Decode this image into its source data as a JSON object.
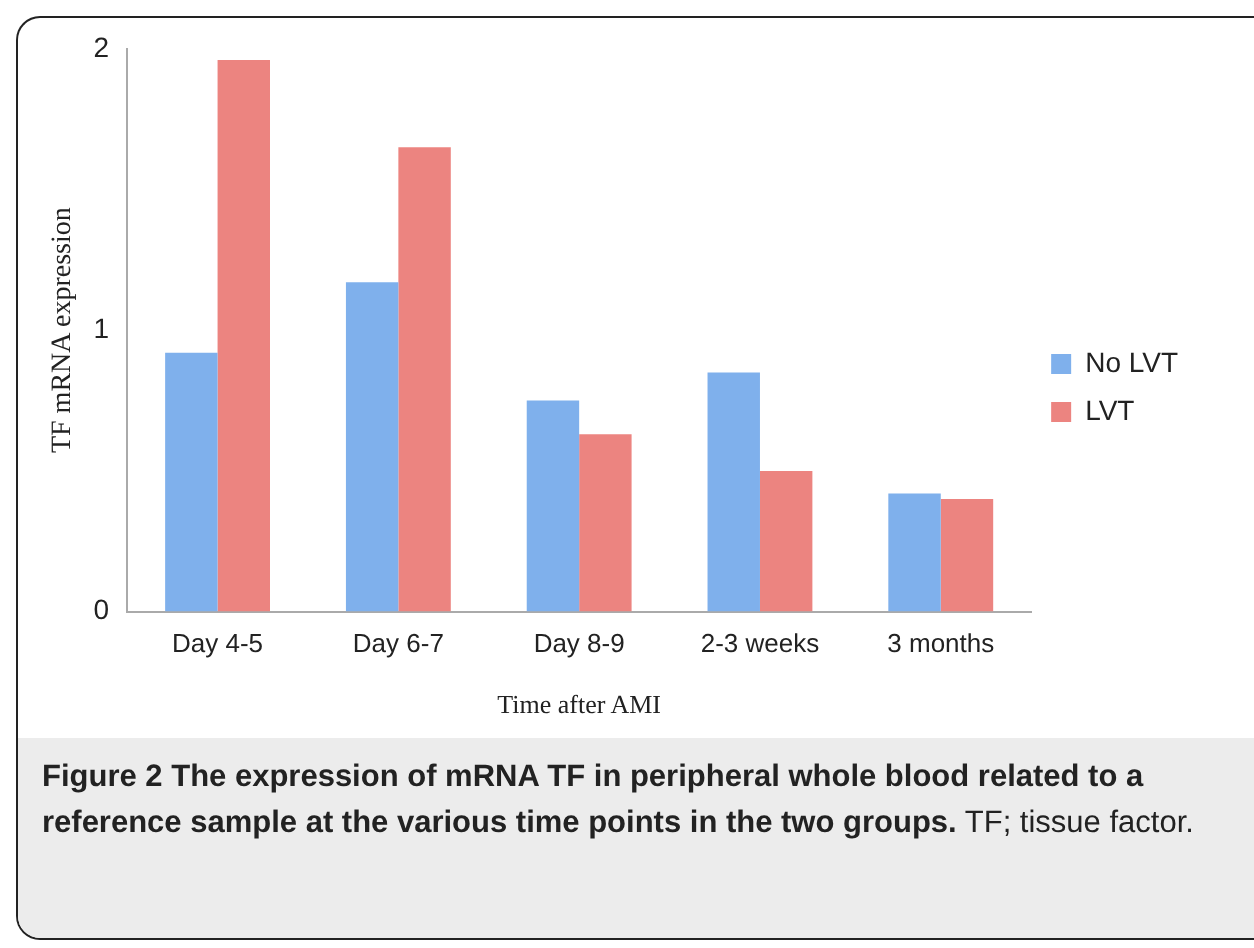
{
  "chart_data": {
    "type": "bar",
    "xlabel": "Time after AMI",
    "ylabel": "TF mRNA expression",
    "categories": [
      "Day 4-5",
      "Day 6-7",
      "Day 8-9",
      "2-3 weeks",
      "3 months"
    ],
    "series": [
      {
        "name": "No LVT",
        "color": "#7fb0ec",
        "values": [
          0.92,
          1.17,
          0.75,
          0.85,
          0.42
        ]
      },
      {
        "name": "LVT",
        "color": "#ec8480",
        "values": [
          1.96,
          1.65,
          0.63,
          0.5,
          0.4
        ]
      }
    ],
    "ylim": [
      0,
      2
    ],
    "yticks": [
      0,
      1,
      2
    ],
    "grid": false,
    "legend": "right",
    "annotations": [
      "Figure 2 The expression of mRNA TF in peripheral whole blood related to a reference sample at the various time points in the two groups.",
      "TF; tissue factor."
    ]
  }
}
